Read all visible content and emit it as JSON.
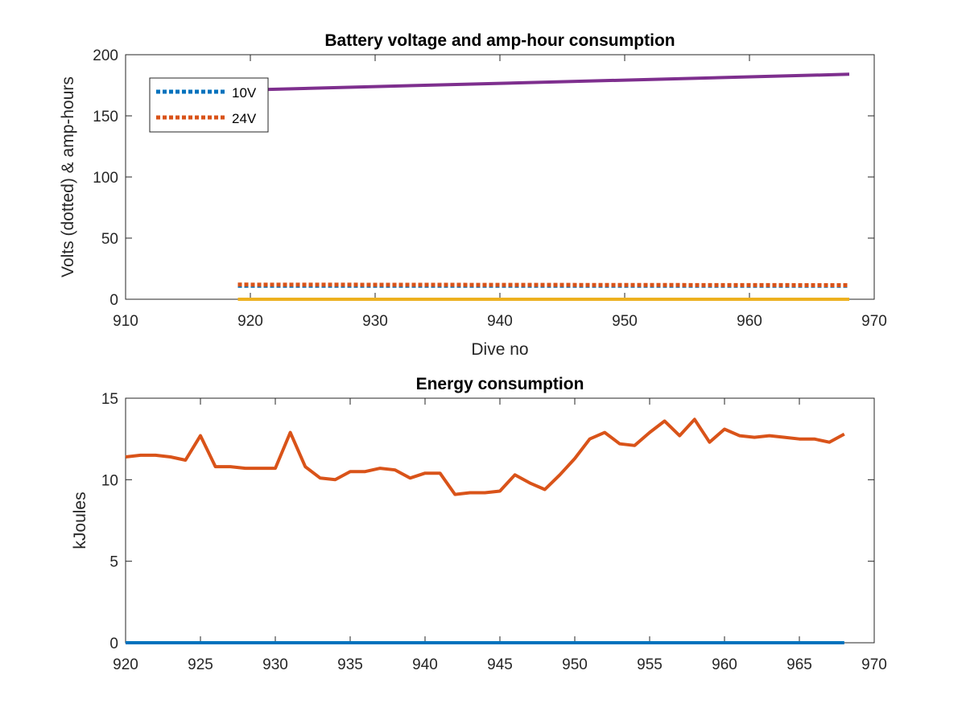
{
  "chart_data": [
    {
      "type": "line",
      "title": "Battery voltage and amp-hour consumption",
      "xlabel": "Dive no",
      "ylabel": "Volts (dotted) & amp-hours",
      "xlim": [
        910,
        970
      ],
      "ylim": [
        0,
        200
      ],
      "xticks": [
        "910",
        "920",
        "930",
        "940",
        "950",
        "960",
        "970"
      ],
      "yticks": [
        "0",
        "50",
        "100",
        "150",
        "200"
      ],
      "grid": false,
      "legend_position": "top-left",
      "series": [
        {
          "name": "10V",
          "style": "dotted",
          "color": "#0072BD",
          "x": [
            919,
            968
          ],
          "y": [
            11,
            11
          ]
        },
        {
          "name": "24V",
          "style": "dotted",
          "color": "#D95319",
          "x": [
            919,
            968
          ],
          "y": [
            12,
            11.5
          ]
        },
        {
          "style": "solid",
          "color": "#EDB120",
          "x": [
            919,
            968
          ],
          "y": [
            0,
            0
          ]
        },
        {
          "style": "solid",
          "color": "#7E2F8E",
          "x": [
            919,
            968
          ],
          "y": [
            171,
            184
          ]
        }
      ]
    },
    {
      "type": "line",
      "title": "Energy consumption",
      "xlabel": "",
      "ylabel": "kJoules",
      "xlim": [
        920,
        970
      ],
      "ylim": [
        0,
        15
      ],
      "xticks": [
        "920",
        "925",
        "930",
        "935",
        "940",
        "945",
        "950",
        "955",
        "960",
        "965",
        "970"
      ],
      "yticks": [
        "0",
        "5",
        "10",
        "15"
      ],
      "grid": false,
      "series": [
        {
          "style": "solid",
          "color": "#0072BD",
          "x": [
            920,
            968
          ],
          "y": [
            0,
            0
          ]
        },
        {
          "style": "solid",
          "color": "#D95319",
          "x": [
            920,
            921,
            922,
            923,
            924,
            925,
            926,
            927,
            928,
            929,
            930,
            931,
            932,
            933,
            934,
            935,
            936,
            937,
            938,
            939,
            940,
            941,
            942,
            943,
            944,
            945,
            946,
            947,
            948,
            949,
            950,
            951,
            952,
            953,
            954,
            955,
            956,
            957,
            958,
            959,
            960,
            961,
            962,
            963,
            964,
            965,
            966,
            967,
            968
          ],
          "y": [
            11.4,
            11.5,
            11.5,
            11.4,
            11.2,
            12.7,
            10.8,
            10.8,
            10.7,
            10.7,
            10.7,
            12.9,
            10.8,
            10.1,
            10.0,
            10.5,
            10.5,
            10.7,
            10.6,
            10.1,
            10.4,
            10.4,
            9.1,
            9.2,
            9.2,
            9.3,
            10.3,
            9.8,
            9.4,
            10.3,
            11.3,
            12.5,
            12.9,
            12.2,
            12.1,
            12.9,
            13.6,
            12.7,
            13.7,
            12.3,
            13.1,
            12.7,
            12.6,
            12.7,
            12.6,
            12.5,
            12.5,
            12.3,
            12.8
          ]
        }
      ]
    }
  ]
}
